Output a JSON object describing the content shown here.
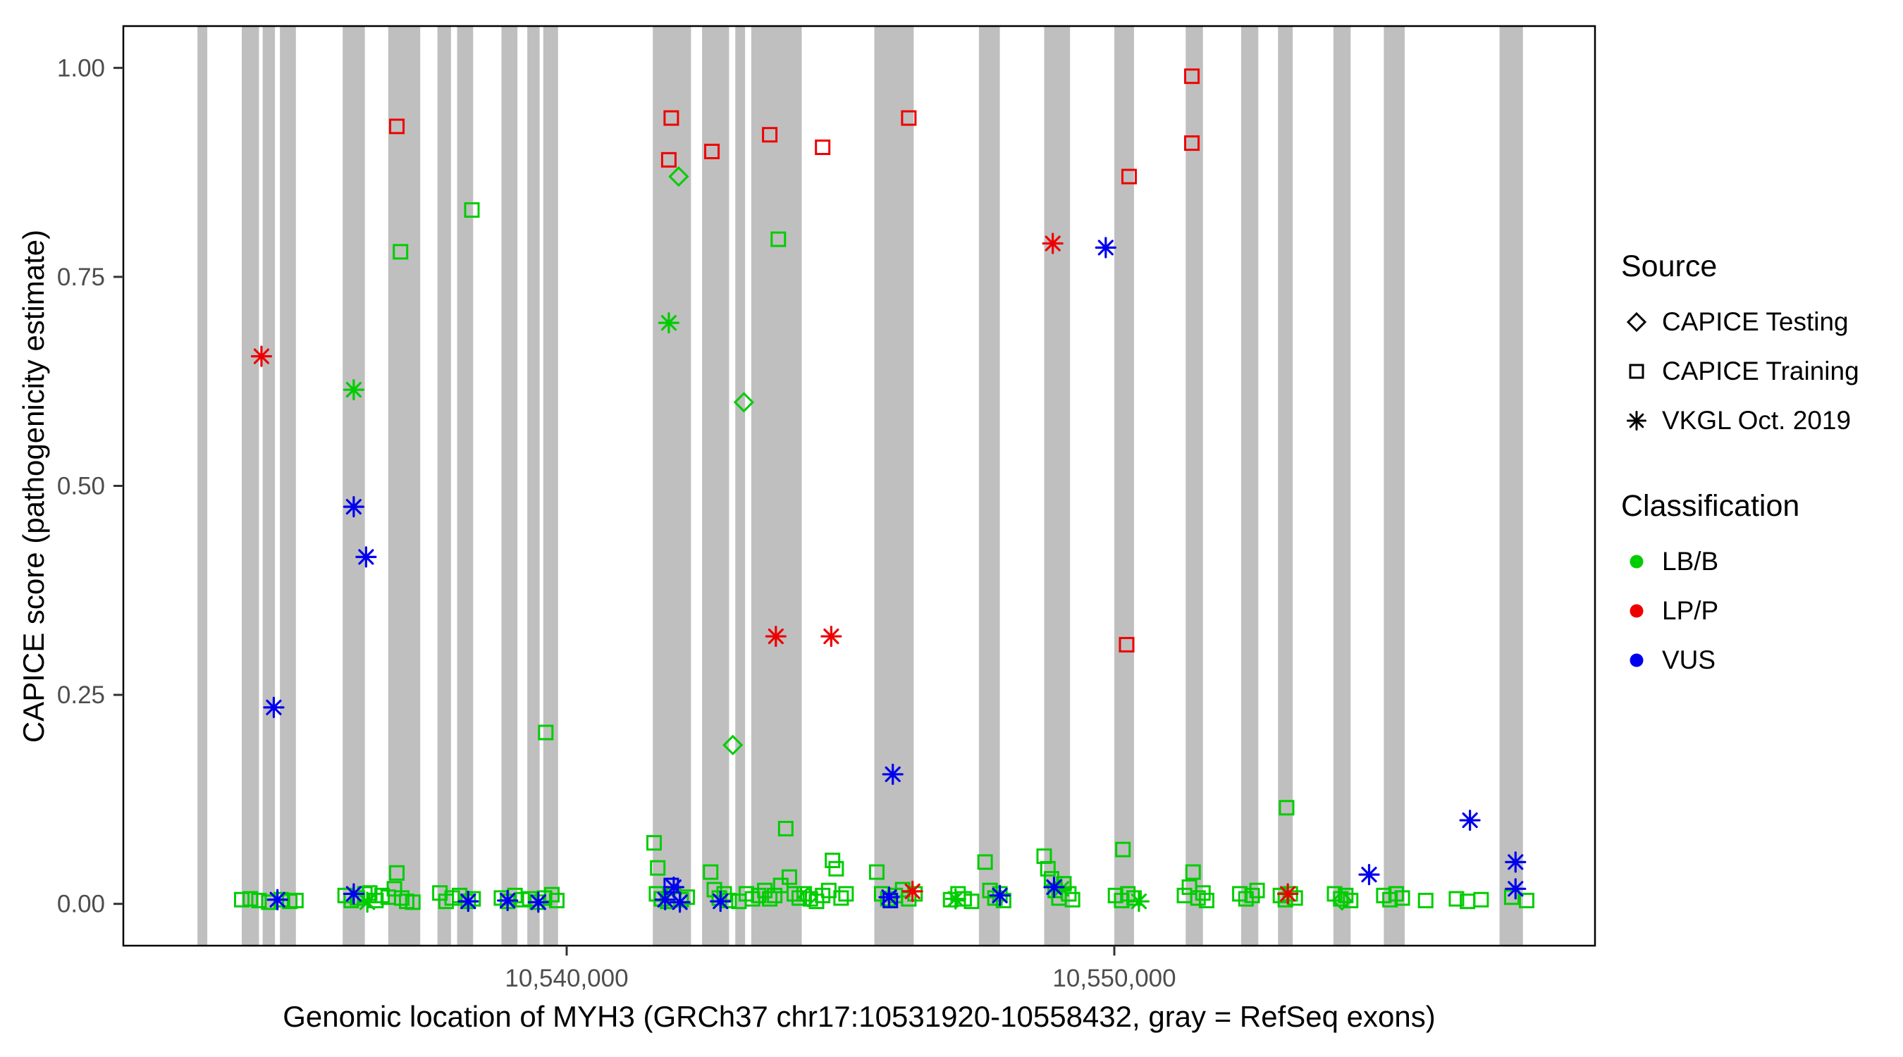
{
  "legend": {
    "source": {
      "title": "Source",
      "items": [
        {
          "shape": "diamond",
          "label": "CAPICE Testing"
        },
        {
          "shape": "square",
          "label": "CAPICE Training"
        },
        {
          "shape": "asterisk",
          "label": "VKGL Oct. 2019"
        }
      ]
    },
    "classification": {
      "title": "Classification",
      "items": [
        {
          "label": "LB/B",
          "color": "#00CD00"
        },
        {
          "label": "LP/P",
          "color": "#EE0000"
        },
        {
          "label": "VUS",
          "color": "#0000EE"
        }
      ]
    }
  },
  "chart_data": {
    "type": "scatter",
    "title": "",
    "xlabel": "Genomic location of MYH3 (GRCh37 chr17:10531920-10558432, gray = RefSeq exons)",
    "ylabel": "CAPICE score (pathogenicity estimate)",
    "x_domain": [
      10531905,
      10558777
    ],
    "y_domain": [
      -0.05,
      1.05
    ],
    "grid": false,
    "legend_position": "right",
    "x_ticks": [
      {
        "value": 10540000,
        "label": "10,540,000"
      },
      {
        "value": 10550000,
        "label": "10,550,000"
      }
    ],
    "y_ticks": [
      {
        "value": 0.0,
        "label": "0.00"
      },
      {
        "value": 0.25,
        "label": "0.25"
      },
      {
        "value": 0.5,
        "label": "0.50"
      },
      {
        "value": 0.75,
        "label": "0.75"
      },
      {
        "value": 1.0,
        "label": "1.00"
      }
    ],
    "exon_color": "#BFBFBF",
    "colors": {
      "LB/B": "#00CD00",
      "LP/P": "#EE0000",
      "VUS": "#0000EE"
    },
    "shapes": {
      "CAPICE Testing": "diamond",
      "CAPICE Training": "square",
      "VKGL Oct. 2019": "asterisk"
    },
    "exons": [
      [
        10533258,
        10533438
      ],
      [
        10534067,
        10534382
      ],
      [
        10534449,
        10534674
      ],
      [
        10534764,
        10535056
      ],
      [
        10535910,
        10536315
      ],
      [
        10536742,
        10537326
      ],
      [
        10537640,
        10537888
      ],
      [
        10538000,
        10538292
      ],
      [
        10538809,
        10539101
      ],
      [
        10539281,
        10539506
      ],
      [
        10539573,
        10539843
      ],
      [
        10541573,
        10542270
      ],
      [
        10542472,
        10542966
      ],
      [
        10543079,
        10543258
      ],
      [
        10543371,
        10544292
      ],
      [
        10545618,
        10546337
      ],
      [
        10547528,
        10547910
      ],
      [
        10548719,
        10549191
      ],
      [
        10550000,
        10550360
      ],
      [
        10551303,
        10551618
      ],
      [
        10552315,
        10552629
      ],
      [
        10552989,
        10553258
      ],
      [
        10554000,
        10554315
      ],
      [
        10554921,
        10555303
      ],
      [
        10557034,
        10557461
      ]
    ],
    "series": [
      {
        "name": "LB/B CAPICE Training",
        "class": "LB/B",
        "shape": "square",
        "points": [
          [
            10536966,
            0.78
          ],
          [
            10538269,
            0.83
          ],
          [
            10543865,
            0.795
          ],
          [
            10539618,
            0.205
          ],
          [
            10553146,
            0.115
          ],
          [
            10550157,
            0.065
          ],
          [
            10534067,
            0.005
          ],
          [
            10534225,
            0.006
          ],
          [
            10534382,
            0.004
          ],
          [
            10534562,
            0.002
          ],
          [
            10534787,
            0.005
          ],
          [
            10534944,
            0.003
          ],
          [
            10535056,
            0.004
          ],
          [
            10535955,
            0.01
          ],
          [
            10536067,
            0.004
          ],
          [
            10536180,
            0.007
          ],
          [
            10536315,
            0.012
          ],
          [
            10536404,
            0.013
          ],
          [
            10536517,
            0.004
          ],
          [
            10536629,
            0.01
          ],
          [
            10536742,
            0.008
          ],
          [
            10536854,
            0.018
          ],
          [
            10536899,
            0.037
          ],
          [
            10536989,
            0.007
          ],
          [
            10537079,
            0.003
          ],
          [
            10537191,
            0.002
          ],
          [
            10537685,
            0.013
          ],
          [
            10537798,
            0.003
          ],
          [
            10537910,
            0.007
          ],
          [
            10538045,
            0.01
          ],
          [
            10538202,
            0.003
          ],
          [
            10538292,
            0.006
          ],
          [
            10538809,
            0.007
          ],
          [
            10538921,
            0.003
          ],
          [
            10539056,
            0.01
          ],
          [
            10539191,
            0.005
          ],
          [
            10539326,
            0.006
          ],
          [
            10539461,
            0.002
          ],
          [
            10539596,
            0.007
          ],
          [
            10539730,
            0.011
          ],
          [
            10539820,
            0.004
          ],
          [
            10541596,
            0.073
          ],
          [
            10541640,
            0.012
          ],
          [
            10541663,
            0.043
          ],
          [
            10541730,
            0.006
          ],
          [
            10541843,
            0.003
          ],
          [
            10541955,
            0.01
          ],
          [
            10542090,
            0.005
          ],
          [
            10542202,
            0.008
          ],
          [
            10542629,
            0.038
          ],
          [
            10542697,
            0.017
          ],
          [
            10542787,
            0.007
          ],
          [
            10542876,
            0.012
          ],
          [
            10542966,
            0.004
          ],
          [
            10543146,
            0.003
          ],
          [
            10543281,
            0.012
          ],
          [
            10543393,
            0.006
          ],
          [
            10543506,
            0.01
          ],
          [
            10543618,
            0.016
          ],
          [
            10543708,
            0.006
          ],
          [
            10543798,
            0.01
          ],
          [
            10543910,
            0.022
          ],
          [
            10544000,
            0.09
          ],
          [
            10544067,
            0.032
          ],
          [
            10544157,
            0.012
          ],
          [
            10544247,
            0.007
          ],
          [
            10544337,
            0.012
          ],
          [
            10544449,
            0.006
          ],
          [
            10544562,
            0.003
          ],
          [
            10544674,
            0.01
          ],
          [
            10544786,
            0.016
          ],
          [
            10544854,
            0.052
          ],
          [
            10544921,
            0.042
          ],
          [
            10545011,
            0.007
          ],
          [
            10545101,
            0.012
          ],
          [
            10545663,
            0.038
          ],
          [
            10545753,
            0.012
          ],
          [
            10545865,
            0.006
          ],
          [
            10546000,
            0.01
          ],
          [
            10546135,
            0.017
          ],
          [
            10546247,
            0.006
          ],
          [
            10546360,
            0.012
          ],
          [
            10547011,
            0.005
          ],
          [
            10547146,
            0.012
          ],
          [
            10547258,
            0.006
          ],
          [
            10547393,
            0.003
          ],
          [
            10547640,
            0.05
          ],
          [
            10547730,
            0.016
          ],
          [
            10547820,
            0.007
          ],
          [
            10547910,
            0.012
          ],
          [
            10547978,
            0.004
          ],
          [
            10548719,
            0.057
          ],
          [
            10548787,
            0.042
          ],
          [
            10548854,
            0.03
          ],
          [
            10548921,
            0.016
          ],
          [
            10548989,
            0.007
          ],
          [
            10549079,
            0.024
          ],
          [
            10549169,
            0.012
          ],
          [
            10549236,
            0.005
          ],
          [
            10550022,
            0.01
          ],
          [
            10550135,
            0.004
          ],
          [
            10550247,
            0.012
          ],
          [
            10550360,
            0.007
          ],
          [
            10551281,
            0.01
          ],
          [
            10551371,
            0.02
          ],
          [
            10551438,
            0.038
          ],
          [
            10551528,
            0.007
          ],
          [
            10551618,
            0.013
          ],
          [
            10551685,
            0.004
          ],
          [
            10552292,
            0.012
          ],
          [
            10552404,
            0.006
          ],
          [
            10552517,
            0.01
          ],
          [
            10552607,
            0.016
          ],
          [
            10553033,
            0.01
          ],
          [
            10553123,
            0.005
          ],
          [
            10553213,
            0.012
          ],
          [
            10553303,
            0.007
          ],
          [
            10554022,
            0.012
          ],
          [
            10554135,
            0.006
          ],
          [
            10554225,
            0.01
          ],
          [
            10554315,
            0.004
          ],
          [
            10554921,
            0.01
          ],
          [
            10555034,
            0.005
          ],
          [
            10555146,
            0.012
          ],
          [
            10555258,
            0.007
          ],
          [
            10555685,
            0.004
          ],
          [
            10556247,
            0.006
          ],
          [
            10556449,
            0.003
          ],
          [
            10556697,
            0.005
          ],
          [
            10557258,
            0.008
          ],
          [
            10557528,
            0.004
          ]
        ]
      },
      {
        "name": "LB/B CAPICE Testing",
        "class": "LB/B",
        "shape": "diamond",
        "points": [
          [
            10542045,
            0.87
          ],
          [
            10543236,
            0.6
          ],
          [
            10543034,
            0.19
          ],
          [
            10544404,
            0.008
          ],
          [
            10554157,
            0.004
          ]
        ]
      },
      {
        "name": "LB/B VKGL Oct. 2019",
        "class": "LB/B",
        "shape": "asterisk",
        "points": [
          [
            10541865,
            0.695
          ],
          [
            10536112,
            0.615
          ],
          [
            10536360,
            0.002
          ],
          [
            10547101,
            0.006
          ],
          [
            10550449,
            0.003
          ],
          [
            10549034,
            0.018
          ]
        ]
      },
      {
        "name": "VUS CAPICE Training",
        "class": "VUS",
        "shape": "square",
        "points": [
          [
            10541910,
            0.022
          ],
          [
            10545910,
            0.004
          ]
        ]
      },
      {
        "name": "VUS VKGL Oct. 2019",
        "class": "VUS",
        "shape": "asterisk",
        "points": [
          [
            10536112,
            0.475
          ],
          [
            10536337,
            0.415
          ],
          [
            10534652,
            0.235
          ],
          [
            10549843,
            0.785
          ],
          [
            10545955,
            0.155
          ],
          [
            10556494,
            0.1
          ],
          [
            10554652,
            0.035
          ],
          [
            10557326,
            0.05
          ],
          [
            10557326,
            0.018
          ],
          [
            10534719,
            0.005
          ],
          [
            10536112,
            0.012
          ],
          [
            10538202,
            0.003
          ],
          [
            10538921,
            0.004
          ],
          [
            10539483,
            0.002
          ],
          [
            10541955,
            0.02
          ],
          [
            10542067,
            0.002
          ],
          [
            10541798,
            0.005
          ],
          [
            10542809,
            0.003
          ],
          [
            10545888,
            0.008
          ],
          [
            10547910,
            0.01
          ],
          [
            10548899,
            0.02
          ]
        ]
      },
      {
        "name": "LP/P CAPICE Training",
        "class": "LP/P",
        "shape": "square",
        "points": [
          [
            10536899,
            0.93
          ],
          [
            10541910,
            0.94
          ],
          [
            10541865,
            0.89
          ],
          [
            10542652,
            0.9
          ],
          [
            10543708,
            0.92
          ],
          [
            10544674,
            0.905
          ],
          [
            10546247,
            0.94
          ],
          [
            10550270,
            0.87
          ],
          [
            10551416,
            0.99
          ],
          [
            10551416,
            0.91
          ],
          [
            10550225,
            0.31
          ]
        ]
      },
      {
        "name": "LP/P VKGL Oct. 2019",
        "class": "LP/P",
        "shape": "asterisk",
        "points": [
          [
            10534427,
            0.655
          ],
          [
            10543820,
            0.32
          ],
          [
            10544831,
            0.32
          ],
          [
            10548876,
            0.79
          ],
          [
            10546315,
            0.015
          ],
          [
            10553168,
            0.012
          ]
        ]
      }
    ]
  }
}
